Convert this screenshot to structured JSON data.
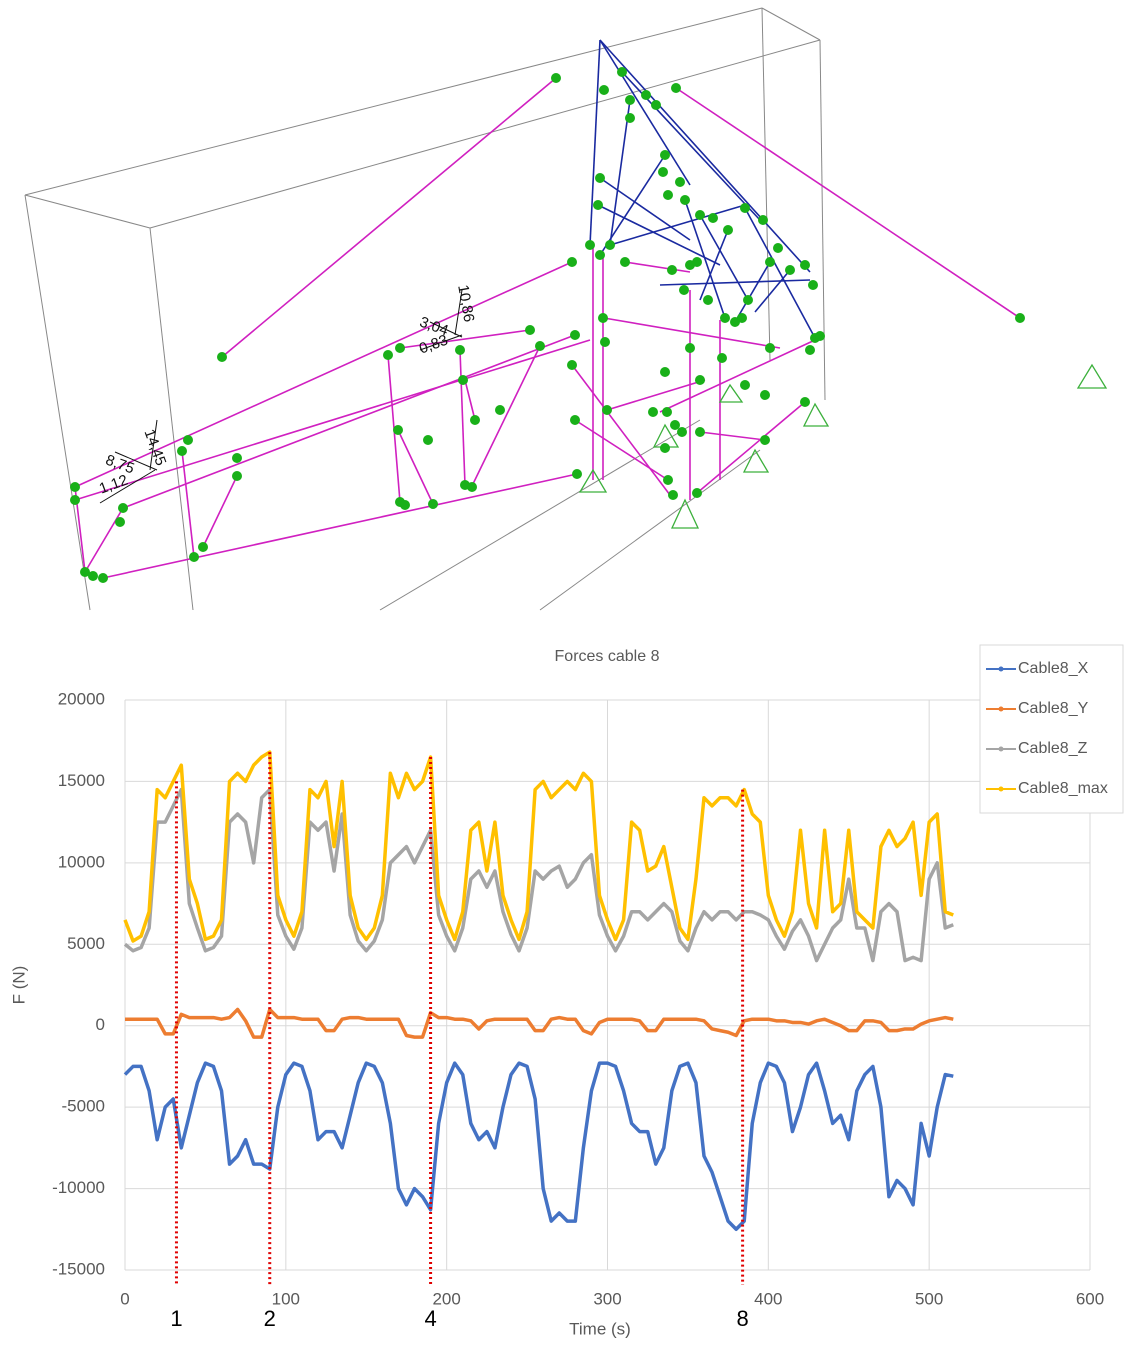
{
  "diagram": {
    "labels": [
      "14,45",
      "8,75",
      "1,12",
      "10,86",
      "3,04",
      "0,83"
    ]
  },
  "chart_data": {
    "type": "line",
    "title": "Forces cable 8",
    "x_label": "Time (s)",
    "y_label": "F (N)",
    "xlim": [
      0,
      600
    ],
    "xticks": [
      0,
      100,
      200,
      300,
      400,
      500,
      600
    ],
    "ylim": [
      -15000,
      20000
    ],
    "yticks": [
      -15000,
      -10000,
      -5000,
      0,
      5000,
      10000,
      15000,
      20000
    ],
    "grid": true,
    "legend": "top-right",
    "x": [
      0,
      5,
      10,
      15,
      20,
      25,
      30,
      35,
      40,
      45,
      50,
      55,
      60,
      65,
      70,
      75,
      80,
      85,
      90,
      95,
      100,
      105,
      110,
      115,
      120,
      125,
      130,
      135,
      140,
      145,
      150,
      155,
      160,
      165,
      170,
      175,
      180,
      185,
      190,
      195,
      200,
      205,
      210,
      215,
      220,
      225,
      230,
      235,
      240,
      245,
      250,
      255,
      260,
      265,
      270,
      275,
      280,
      285,
      290,
      295,
      300,
      305,
      310,
      315,
      320,
      325,
      330,
      335,
      340,
      345,
      350,
      355,
      360,
      365,
      370,
      375,
      380,
      385,
      390,
      395,
      400,
      405,
      410,
      415,
      420,
      425,
      430,
      435,
      440,
      445,
      450,
      455,
      460,
      465,
      470,
      475,
      480,
      485,
      490,
      495,
      500,
      505,
      510,
      515
    ],
    "series": [
      {
        "name": "Cable8_X",
        "color": "#4472c4",
        "values": [
          -3000,
          -2500,
          -2500,
          -4000,
          -7000,
          -5000,
          -4500,
          -7500,
          -5500,
          -3500,
          -2300,
          -2500,
          -4000,
          -8500,
          -8000,
          -7000,
          -8500,
          -8500,
          -8800,
          -5000,
          -3000,
          -2300,
          -2500,
          -4000,
          -7000,
          -6500,
          -6500,
          -7500,
          -5500,
          -3500,
          -2300,
          -2500,
          -3500,
          -6000,
          -10000,
          -11000,
          -10000,
          -10500,
          -11300,
          -6000,
          -3500,
          -2300,
          -3000,
          -6000,
          -7000,
          -6500,
          -7500,
          -5000,
          -3000,
          -2300,
          -2500,
          -4500,
          -10000,
          -12000,
          -11500,
          -12000,
          -12000,
          -7500,
          -4000,
          -2300,
          -2300,
          -2500,
          -4000,
          -6000,
          -6500,
          -6500,
          -8500,
          -7500,
          -4000,
          -2500,
          -2300,
          -3500,
          -8000,
          -9000,
          -10500,
          -12000,
          -12500,
          -12000,
          -6000,
          -3500,
          -2300,
          -2500,
          -3500,
          -6500,
          -5000,
          -3000,
          -2300,
          -4000,
          -6000,
          -5500,
          -7000,
          -4000,
          -3000,
          -2500,
          -5000,
          -10500,
          -9500,
          -10000,
          -11000,
          -6000,
          -8000,
          -5000,
          -3000,
          -3100
        ]
      },
      {
        "name": "Cable8_Y",
        "color": "#ed7d31",
        "values": [
          400,
          400,
          400,
          400,
          400,
          -500,
          -500,
          700,
          500,
          500,
          500,
          500,
          400,
          500,
          1000,
          300,
          -700,
          -700,
          1000,
          500,
          500,
          500,
          400,
          400,
          400,
          -300,
          -300,
          400,
          500,
          500,
          400,
          400,
          400,
          400,
          400,
          -600,
          -700,
          -700,
          800,
          500,
          500,
          400,
          400,
          300,
          -200,
          300,
          400,
          400,
          400,
          400,
          400,
          -300,
          -300,
          400,
          500,
          400,
          400,
          -300,
          -500,
          200,
          400,
          400,
          400,
          400,
          300,
          -300,
          -300,
          400,
          400,
          400,
          400,
          400,
          300,
          -200,
          -300,
          -400,
          -600,
          300,
          400,
          400,
          400,
          300,
          300,
          200,
          200,
          100,
          300,
          400,
          200,
          0,
          -300,
          -300,
          300,
          300,
          200,
          -300,
          -300,
          -200,
          -200,
          100,
          300,
          400,
          500,
          400
        ]
      },
      {
        "name": "Cable8_Z",
        "color": "#a5a5a5",
        "values": [
          5000,
          4600,
          4800,
          6000,
          12500,
          12500,
          13500,
          14500,
          7500,
          6000,
          4600,
          4800,
          5500,
          12500,
          13000,
          12500,
          10000,
          14000,
          14500,
          6800,
          5500,
          4700,
          6000,
          12500,
          12000,
          12500,
          9500,
          13000,
          6800,
          5200,
          4600,
          5200,
          6500,
          10000,
          10500,
          11000,
          10000,
          11000,
          12000,
          6800,
          5500,
          4600,
          6000,
          9000,
          9500,
          8500,
          9500,
          7000,
          5600,
          4600,
          6000,
          9500,
          9000,
          9500,
          9800,
          8500,
          9000,
          10000,
          10500,
          6800,
          5500,
          4600,
          5500,
          7000,
          7000,
          6500,
          7000,
          7500,
          7000,
          5200,
          4600,
          6000,
          7000,
          6500,
          7000,
          7000,
          6500,
          7000,
          7000,
          6800,
          6500,
          5500,
          4700,
          5800,
          6500,
          5500,
          4000,
          5000,
          6000,
          6500,
          9000,
          6000,
          6000,
          4000,
          7000,
          7500,
          7000,
          4000,
          4200,
          4000,
          9000,
          10000,
          6000,
          6200
        ]
      },
      {
        "name": "Cable8_max",
        "color": "#ffc000",
        "values": [
          6500,
          5200,
          5500,
          7000,
          14500,
          14000,
          15000,
          16000,
          9000,
          7500,
          5300,
          5500,
          6500,
          15000,
          15500,
          15000,
          16000,
          16500,
          16800,
          8000,
          6500,
          5500,
          7000,
          14500,
          14000,
          15000,
          11000,
          15000,
          8000,
          6000,
          5300,
          6000,
          8000,
          15500,
          14000,
          15500,
          14500,
          15000,
          16500,
          8000,
          6500,
          5300,
          7000,
          12000,
          12500,
          9500,
          12500,
          8000,
          6500,
          5300,
          7000,
          14500,
          15000,
          14000,
          14500,
          15000,
          14500,
          15500,
          15000,
          8000,
          6500,
          5300,
          6500,
          12500,
          12000,
          9500,
          9800,
          11000,
          8500,
          6000,
          5300,
          9000,
          14000,
          13500,
          14000,
          14000,
          13500,
          14500,
          13000,
          12500,
          8000,
          6500,
          5500,
          7000,
          12000,
          7500,
          6000,
          12000,
          7000,
          7500,
          12000,
          7000,
          6500,
          6000,
          11000,
          12000,
          11000,
          11500,
          12500,
          8000,
          12500,
          13000,
          7000,
          6800
        ]
      }
    ],
    "annotations": [
      {
        "x": 32,
        "label": "1"
      },
      {
        "x": 90,
        "label": "2"
      },
      {
        "x": 190,
        "label": "4"
      },
      {
        "x": 384,
        "label": "8"
      }
    ]
  }
}
